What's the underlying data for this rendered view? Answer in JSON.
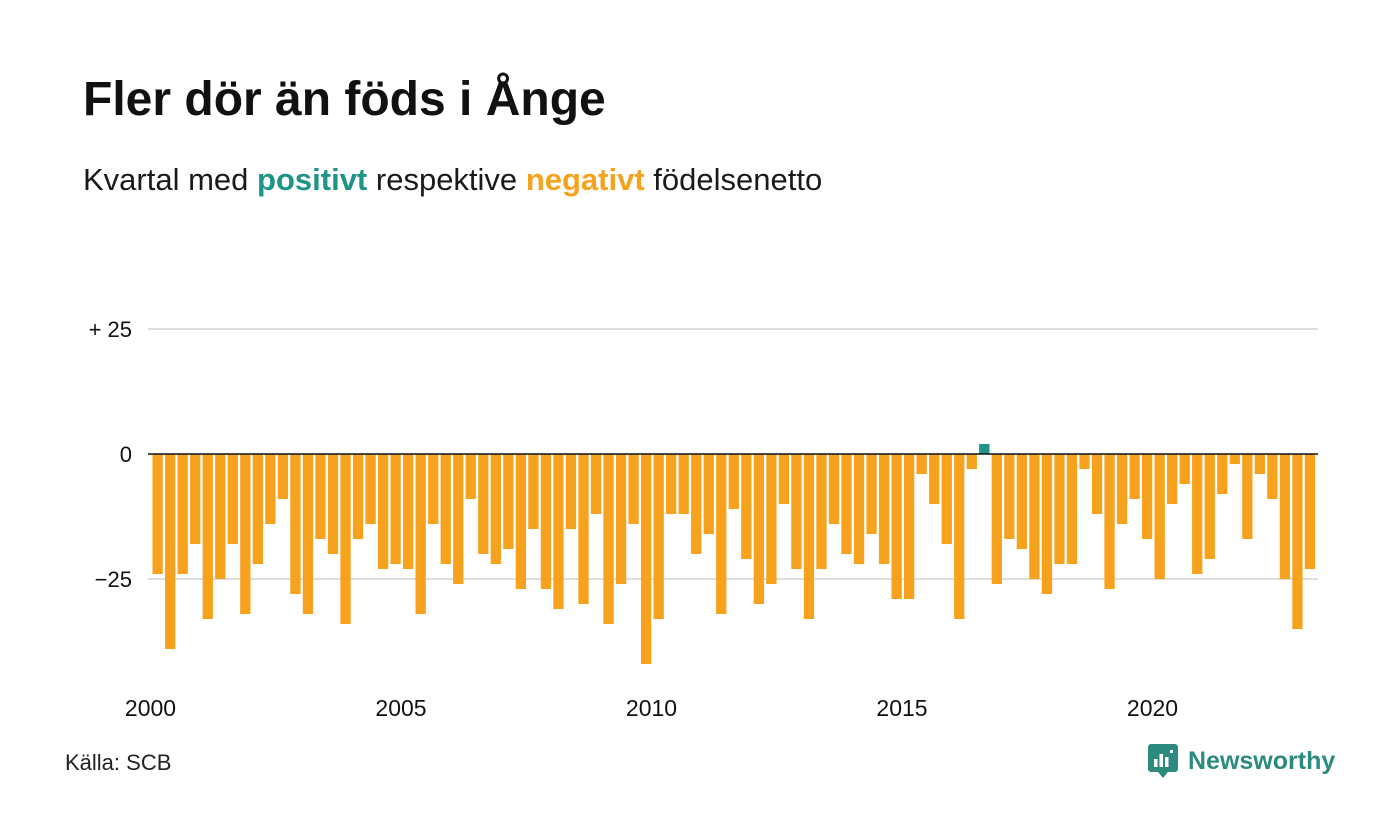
{
  "title": "Fler dör än föds i Ånge",
  "subtitle": {
    "prefix": "Kvartal med",
    "positive_word": "positivt",
    "middle": "respektive",
    "negative_word": "negativt",
    "suffix": "födelsenetto"
  },
  "source": "Källa: SCB",
  "brand": "Newsworthy",
  "colors": {
    "positive": "#1e9486",
    "negative": "#f7a21d",
    "grid": "#dddddd",
    "zero_line": "#111111"
  },
  "chart_data": {
    "type": "bar",
    "title": "Fler dör än föds i Ånge",
    "ylim": [
      -45,
      30
    ],
    "yticks": [
      25,
      0,
      -25
    ],
    "ytick_labels": [
      "+ 25",
      "0",
      "−25"
    ],
    "xticks": [
      "2000",
      "2005",
      "2010",
      "2015",
      "2020"
    ],
    "grid": true,
    "start_year": 2000,
    "periods_per_year": 4,
    "values": [
      -24,
      -39,
      -24,
      -18,
      -33,
      -25,
      -18,
      -32,
      -22,
      -14,
      -9,
      -28,
      -32,
      -17,
      -20,
      -34,
      -17,
      -14,
      -23,
      -22,
      -23,
      -32,
      -14,
      -22,
      -26,
      -9,
      -20,
      -22,
      -19,
      -27,
      -15,
      -27,
      -31,
      -15,
      -30,
      -12,
      -34,
      -26,
      -14,
      -42,
      -33,
      -12,
      -12,
      -20,
      -16,
      -32,
      -11,
      -21,
      -30,
      -26,
      -10,
      -23,
      -33,
      -23,
      -14,
      -20,
      -22,
      -16,
      -22,
      -29,
      -29,
      -4,
      -10,
      -18,
      -33,
      -3,
      2,
      -26,
      -17,
      -19,
      -25,
      -28,
      -22,
      -22,
      -3,
      -12,
      -27,
      -14,
      -9,
      -17,
      -25,
      -10,
      -6,
      -24,
      -21,
      -8,
      -2,
      -17,
      -4,
      -9,
      -25,
      -35,
      -23
    ]
  }
}
